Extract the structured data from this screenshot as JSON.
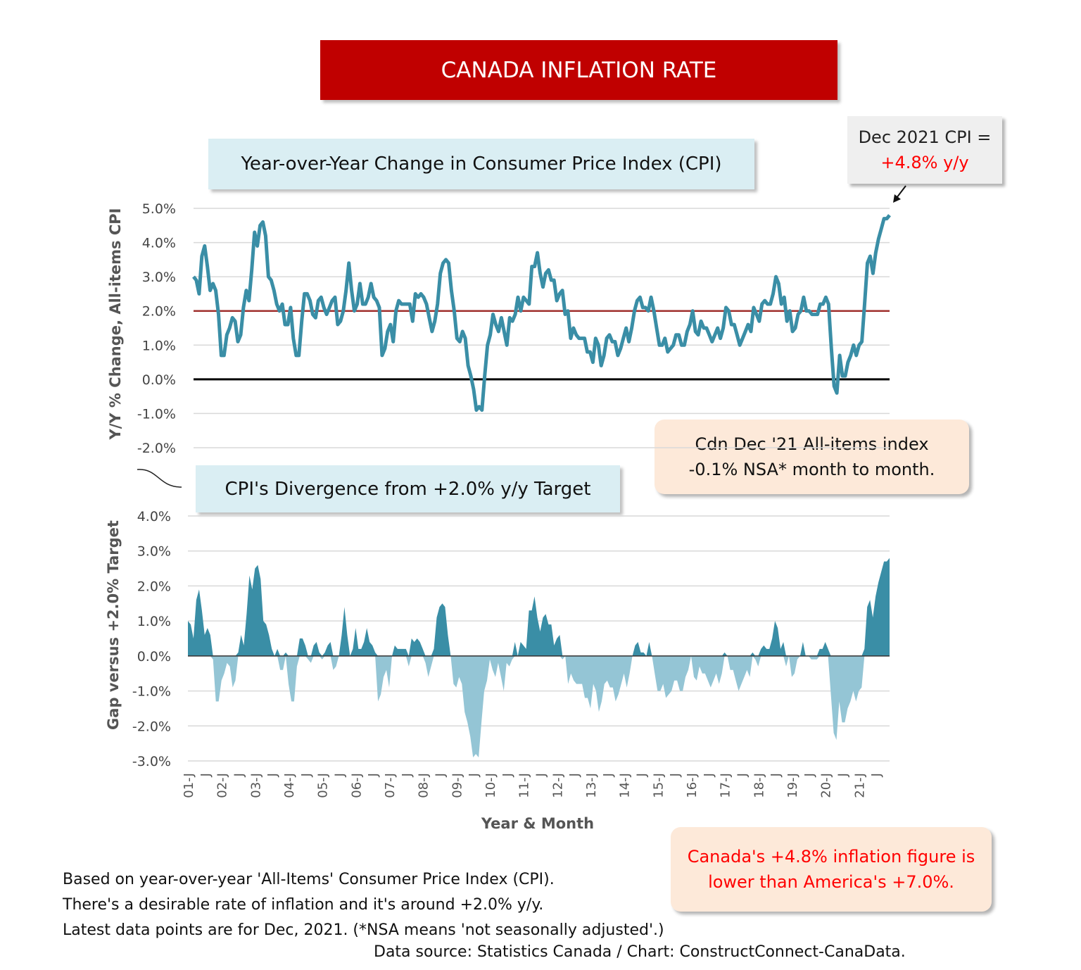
{
  "title": "CANADA INFLATION RATE",
  "colors": {
    "title_bg": "#c00000",
    "line": "#3a8ea6",
    "target": "#a0302e",
    "positive_area": "#3a8ea6",
    "negative_area": "#94c5d5",
    "subtitle_bg": "#daeef3",
    "callout_bg": "#fde9d9"
  },
  "callouts": {
    "latest_line1": "Dec 2021 CPI =",
    "latest_line2": "+4.8% y/y",
    "mom_line1": "Cdn Dec '21 All-items index",
    "mom_line2": "-0.1% NSA* month to month.",
    "compare_line1": "Canada's +4.8% inflation figure is",
    "compare_line2": "lower than America's +7.0%."
  },
  "notes": [
    "Based on year-over-year 'All-Items' Consumer Price Index (CPI).",
    "There's a desirable rate of inflation and it's around +2.0% y/y.",
    "Latest data points are for Dec, 2021. (*NSA means 'not seasonally adjusted'.)"
  ],
  "source": "Data source: Statistics Canada / Chart: ConstructConnect-CanaData.",
  "chart_data": [
    {
      "type": "line",
      "title": "Year-over-Year Change in Consumer Price Index (CPI)",
      "ylabel": "Y/Y % Change, All-items CPI",
      "xlabel": "Year & Month",
      "ylim": [
        -2.0,
        5.0
      ],
      "yticks": [
        "5.0%",
        "4.0%",
        "3.0%",
        "2.0%",
        "1.0%",
        "0.0%",
        "-1.0%",
        "-2.0%"
      ],
      "target": 2.0,
      "grid": true,
      "x_start": "2001-01",
      "x_end": "2021-12",
      "xticks": [
        "01-J",
        "J",
        "02-J",
        "J",
        "03-J",
        "J",
        "04-J",
        "J",
        "05-J",
        "J",
        "06-J",
        "J",
        "07-J",
        "J",
        "08-J",
        "J",
        "09-J",
        "J",
        "10-J",
        "J",
        "11-J",
        "J",
        "12-J",
        "J",
        "13-J",
        "J",
        "14-J",
        "J",
        "15-J",
        "J",
        "16-J",
        "J",
        "17-J",
        "J",
        "18-J",
        "J",
        "19-J",
        "J",
        "20-J",
        "J",
        "21-J",
        "J"
      ],
      "values": [
        3.0,
        2.9,
        2.5,
        3.6,
        3.9,
        3.3,
        2.6,
        2.8,
        2.6,
        1.9,
        0.7,
        0.7,
        1.3,
        1.5,
        1.8,
        1.7,
        1.1,
        1.3,
        2.1,
        2.6,
        2.3,
        3.2,
        4.3,
        3.9,
        4.5,
        4.6,
        4.2,
        3.0,
        2.9,
        2.6,
        2.2,
        2.0,
        2.2,
        1.6,
        1.6,
        2.1,
        1.2,
        0.7,
        0.7,
        1.7,
        2.5,
        2.5,
        2.3,
        1.9,
        1.8,
        2.3,
        2.4,
        2.1,
        1.9,
        2.1,
        2.3,
        2.4,
        1.6,
        1.7,
        2.0,
        2.6,
        3.4,
        2.6,
        2.0,
        2.2,
        2.8,
        2.2,
        2.2,
        2.4,
        2.8,
        2.4,
        2.3,
        2.1,
        0.7,
        0.9,
        1.4,
        1.6,
        1.1,
        2.0,
        2.3,
        2.2,
        2.2,
        2.2,
        2.2,
        1.7,
        2.5,
        2.4,
        2.5,
        2.4,
        2.2,
        1.8,
        1.4,
        1.7,
        2.2,
        3.1,
        3.4,
        3.5,
        3.4,
        2.6,
        2.0,
        1.2,
        1.1,
        1.4,
        1.2,
        0.4,
        0.1,
        -0.3,
        -0.9,
        -0.8,
        -0.9,
        0.1,
        1.0,
        1.3,
        1.9,
        1.6,
        1.4,
        1.8,
        1.4,
        1.0,
        1.8,
        1.7,
        1.9,
        2.4,
        2.0,
        2.4,
        2.3,
        2.2,
        3.3,
        3.3,
        3.7,
        3.1,
        2.7,
        3.1,
        3.2,
        2.9,
        2.9,
        2.3,
        2.5,
        2.6,
        1.9,
        2.0,
        1.2,
        1.5,
        1.3,
        1.2,
        1.2,
        1.2,
        0.8,
        0.8,
        0.5,
        1.2,
        1.0,
        0.4,
        0.7,
        1.2,
        1.3,
        1.1,
        1.1,
        0.7,
        0.9,
        1.2,
        1.5,
        1.1,
        1.5,
        2.0,
        2.3,
        2.4,
        2.1,
        2.1,
        2.0,
        2.4,
        2.0,
        1.5,
        1.0,
        1.0,
        1.2,
        0.8,
        0.9,
        1.0,
        1.3,
        1.3,
        1.0,
        1.0,
        1.4,
        1.6,
        2.0,
        1.4,
        1.3,
        1.7,
        1.5,
        1.5,
        1.3,
        1.1,
        1.3,
        1.5,
        1.2,
        1.5,
        2.1,
        2.0,
        1.6,
        1.6,
        1.3,
        1.0,
        1.2,
        1.4,
        1.6,
        1.4,
        2.1,
        1.9,
        1.7,
        2.2,
        2.3,
        2.2,
        2.2,
        2.5,
        3.0,
        2.8,
        2.2,
        2.4,
        1.7,
        2.0,
        1.4,
        1.5,
        1.9,
        2.0,
        2.4,
        2.0,
        2.0,
        1.9,
        1.9,
        1.9,
        2.2,
        2.2,
        2.4,
        2.2,
        0.9,
        -0.2,
        -0.4,
        0.7,
        0.1,
        0.1,
        0.5,
        0.7,
        1.0,
        0.7,
        1.0,
        1.1,
        2.2,
        3.4,
        3.6,
        3.1,
        3.7,
        4.1,
        4.4,
        4.7,
        4.7,
        4.8
      ]
    },
    {
      "type": "area",
      "title": "CPI's Divergence from +2.0% y/y Target",
      "ylabel": "Gap versus +2.0% Target",
      "ylim": [
        -3.0,
        4.0
      ],
      "yticks": [
        "4.0%",
        "3.0%",
        "2.0%",
        "1.0%",
        "0.0%",
        "-1.0%",
        "-2.0%",
        "-3.0%"
      ],
      "grid": true,
      "values_definition": "y/y CPI minus 2.0"
    }
  ]
}
